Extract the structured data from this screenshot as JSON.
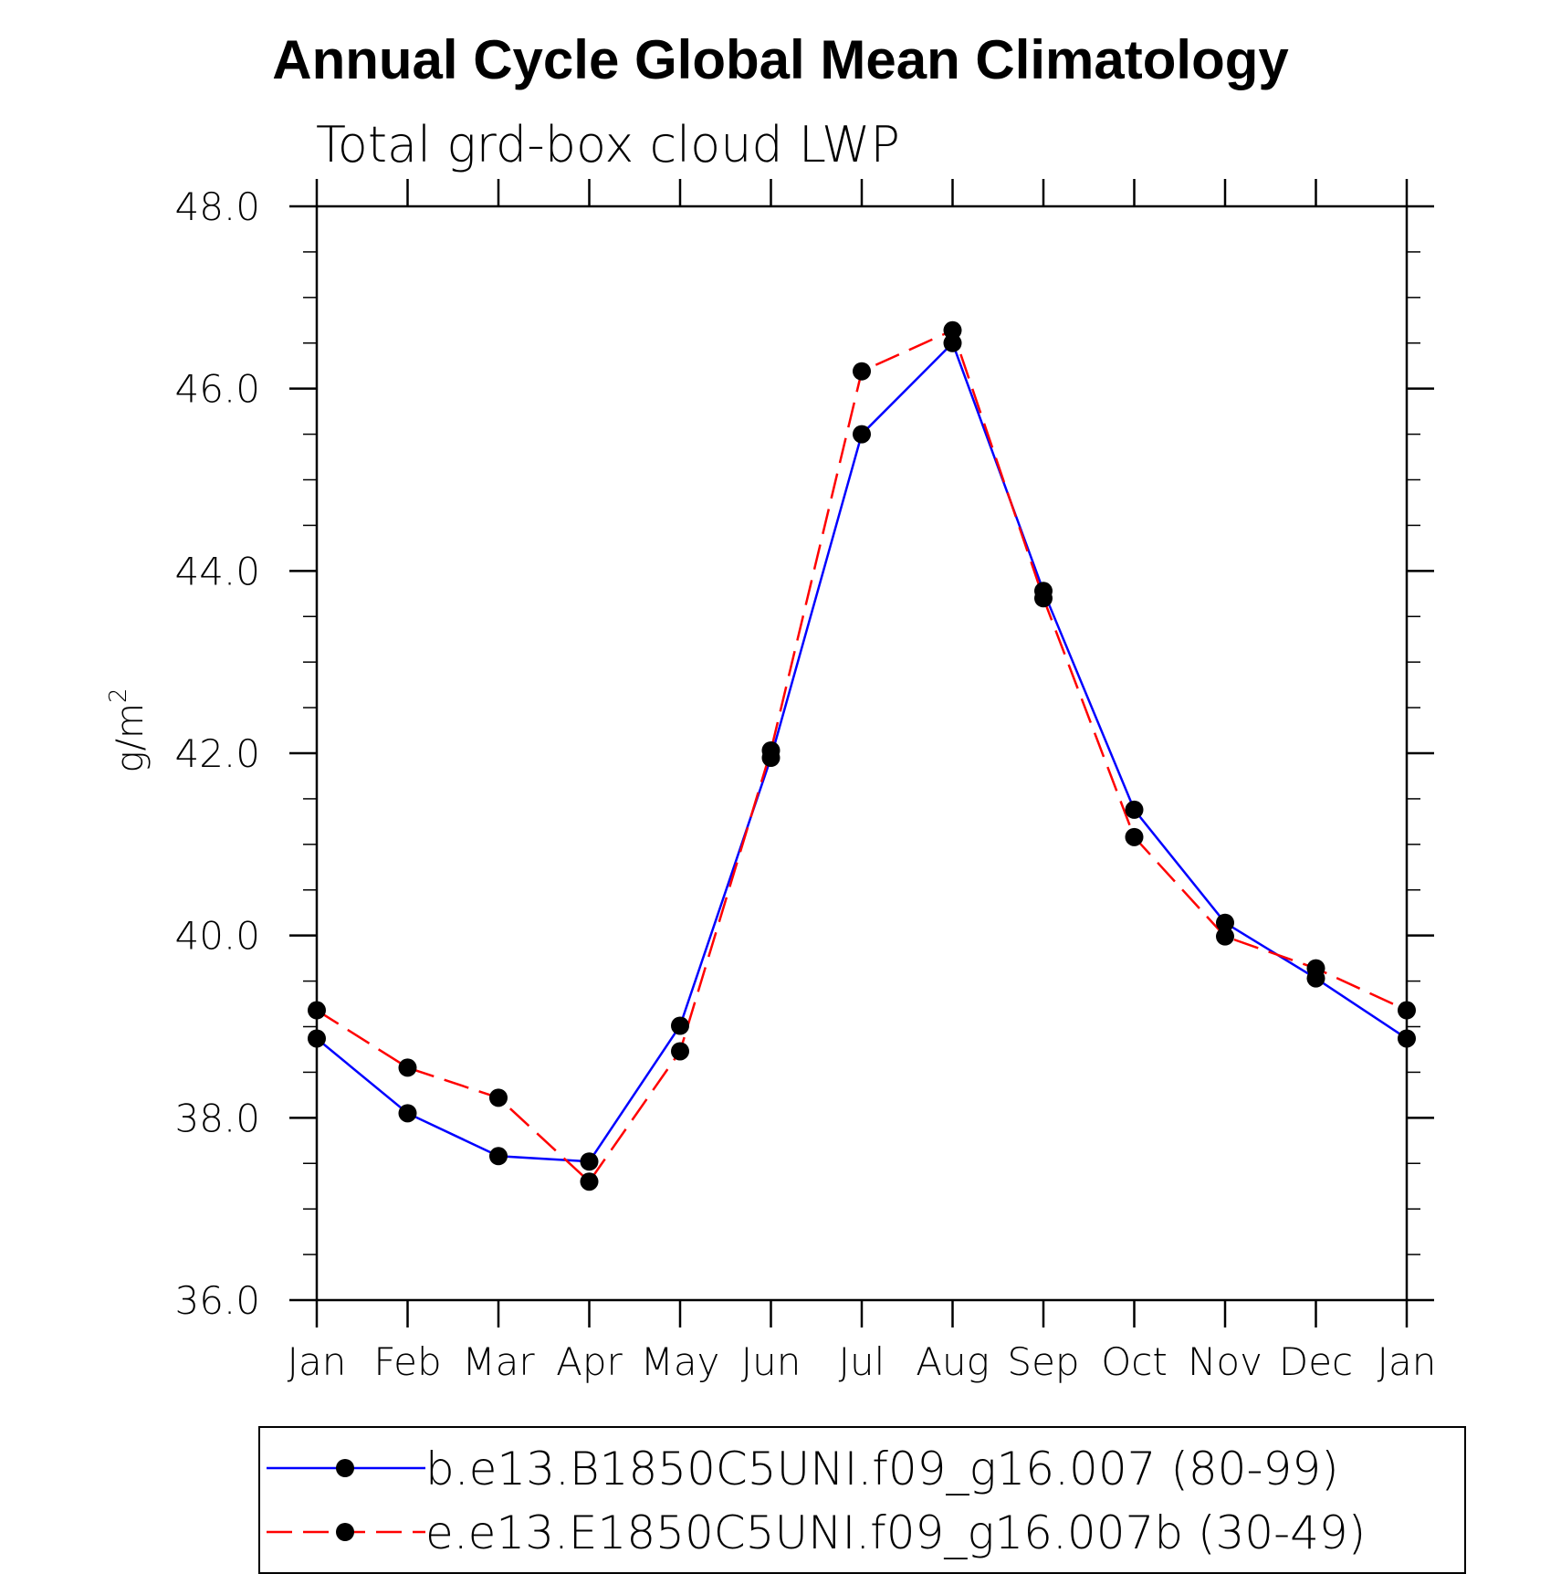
{
  "chart_data": {
    "type": "line",
    "title": "Annual Cycle Global Mean Climatology",
    "subtitle": "Total grd-box cloud LWP",
    "xlabel": "",
    "ylabel": "g/m",
    "ylabel_sup": "2",
    "ylim": [
      36.0,
      48.0
    ],
    "yticks": [
      36.0,
      38.0,
      40.0,
      42.0,
      44.0,
      46.0,
      48.0
    ],
    "ytick_labels": [
      "36.0",
      "38.0",
      "40.0",
      "42.0",
      "44.0",
      "46.0",
      "48.0"
    ],
    "categories": [
      "Jan",
      "Feb",
      "Mar",
      "Apr",
      "May",
      "Jun",
      "Jul",
      "Aug",
      "Sep",
      "Oct",
      "Nov",
      "Dec",
      "Jan"
    ],
    "series": [
      {
        "name": "b.e13.B1850C5UNI.f09_g16.007 (80-99)",
        "color": "#0000ff",
        "dash": "solid",
        "marker": "filled-circle",
        "values": [
          38.87,
          38.05,
          37.58,
          37.52,
          39.01,
          41.95,
          45.5,
          46.5,
          43.78,
          41.38,
          40.14,
          39.53,
          38.87
        ]
      },
      {
        "name": "e.e13.E1850C5UNI.f09_g16.007b (30-49)",
        "color": "#ff0000",
        "dash": "dashed",
        "marker": "filled-circle",
        "values": [
          39.18,
          38.55,
          38.22,
          37.3,
          38.73,
          42.03,
          46.19,
          46.64,
          43.7,
          41.08,
          39.99,
          39.64,
          39.18
        ]
      }
    ],
    "grid": false,
    "legend_position": "bottom"
  }
}
